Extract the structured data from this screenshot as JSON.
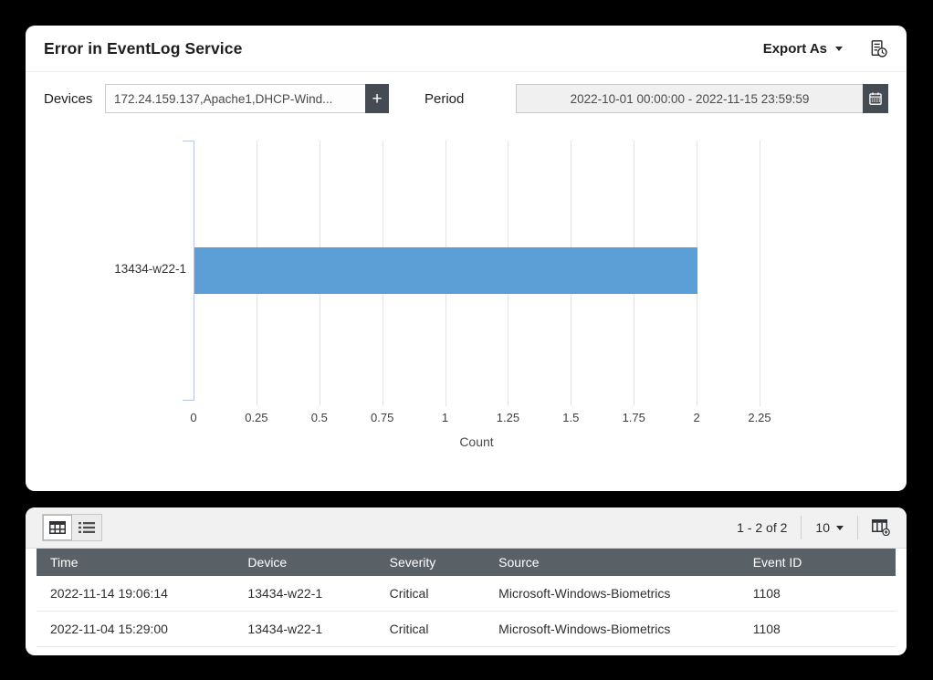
{
  "card_title": "Error in EventLog Service",
  "header": {
    "export_label": "Export As"
  },
  "filters": {
    "devices_label": "Devices",
    "devices_value": "172.24.159.137,Apache1,DHCP-Wind...",
    "add_button": "+",
    "period_label": "Period",
    "period_value": "2022-10-01 00:00:00 - 2022-11-15 23:59:59"
  },
  "chart_data": {
    "type": "bar",
    "orientation": "horizontal",
    "categories": [
      "13434-w22-1"
    ],
    "values": [
      2
    ],
    "xlabel": "Count",
    "xlim": [
      0,
      2.25
    ],
    "xticks": [
      0,
      0.25,
      0.5,
      0.75,
      1,
      1.25,
      1.5,
      1.75,
      2,
      2.25
    ],
    "bar_color": "#5B9FD6",
    "grid": true,
    "legend": "none"
  },
  "table_card": {
    "toolbar": {
      "pagination": "1 - 2 of 2",
      "page_size": "10"
    },
    "columns": [
      "Time",
      "Device",
      "Severity",
      "Source",
      "Event ID"
    ],
    "rows": [
      [
        "2022-11-14 19:06:14",
        "13434-w22-1",
        "Critical",
        "Microsoft-Windows-Biometrics",
        "1108"
      ],
      [
        "2022-11-04 15:29:00",
        "13434-w22-1",
        "Critical",
        "Microsoft-Windows-Biometrics",
        "1108"
      ]
    ]
  },
  "icons": {
    "schedule_report": "document-with-clock",
    "add_device": "plus",
    "period_picker": "calendar",
    "grid_view": "table-grid",
    "list_view": "list-lines",
    "add_column": "table-columns-plus",
    "dropdown": "caret-down"
  },
  "colors": {
    "bar": "#5B9FD6",
    "table_header_bg": "#5A6166",
    "dark_button_bg": "#454B52",
    "toolbar_bg": "#F1F1F1",
    "axis": "#B9C5E2",
    "background": "#000000"
  }
}
